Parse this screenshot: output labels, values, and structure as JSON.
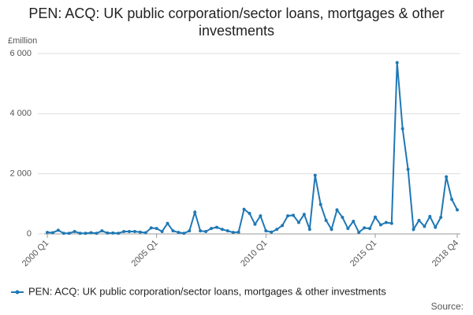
{
  "chart_data": {
    "type": "line",
    "title": "PEN: ACQ: UK public corporation/sector loans, mortgages & other investments",
    "y_label": "£million",
    "source": "Source:",
    "categories": [
      "2000 Q1",
      null,
      null,
      null,
      null,
      null,
      null,
      null,
      null,
      null,
      null,
      null,
      null,
      null,
      null,
      null,
      null,
      null,
      null,
      null,
      "2005 Q1",
      null,
      null,
      null,
      null,
      null,
      null,
      null,
      null,
      null,
      null,
      null,
      null,
      null,
      null,
      null,
      null,
      null,
      null,
      null,
      "2010 Q1",
      null,
      null,
      null,
      null,
      null,
      null,
      null,
      null,
      null,
      null,
      null,
      null,
      null,
      null,
      null,
      null,
      null,
      null,
      null,
      "2015 Q1",
      null,
      null,
      null,
      null,
      null,
      null,
      null,
      null,
      null,
      null,
      null,
      null,
      null,
      null,
      "2018 Q4"
    ],
    "series": [
      {
        "name": "PEN: ACQ: UK public corporation/sector loans, mortgages & other investments",
        "color": "#1f78b4",
        "values": [
          50,
          40,
          120,
          20,
          20,
          80,
          20,
          20,
          40,
          20,
          100,
          30,
          30,
          20,
          80,
          80,
          80,
          60,
          40,
          200,
          180,
          80,
          350,
          100,
          50,
          20,
          100,
          720,
          100,
          80,
          180,
          220,
          150,
          100,
          50,
          60,
          820,
          680,
          320,
          600,
          100,
          60,
          150,
          280,
          600,
          620,
          380,
          650,
          150,
          1950,
          980,
          450,
          150,
          800,
          550,
          180,
          420,
          50,
          200,
          180,
          560,
          300,
          380,
          350,
          5700,
          3500,
          2150,
          150,
          450,
          250,
          580,
          220,
          550,
          1900,
          1150,
          800
        ]
      }
    ],
    "ylim": [
      0,
      6000
    ],
    "yticks": [
      0,
      {
        "value": 2000,
        "label": "2 000"
      },
      {
        "value": 4000,
        "label": "4 000"
      },
      {
        "value": 6000,
        "label": "6 000"
      }
    ],
    "grid": true,
    "legend": "bottom"
  }
}
